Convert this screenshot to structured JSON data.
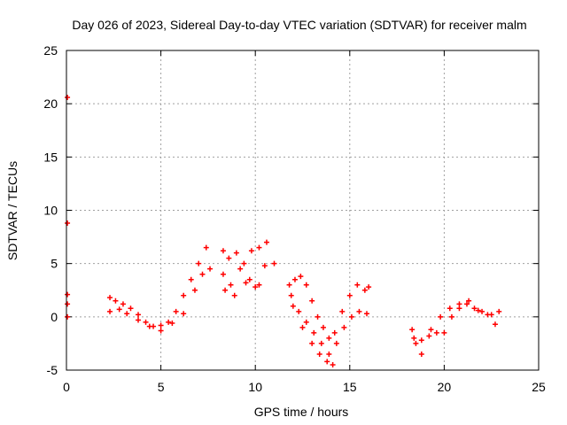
{
  "chart_data": {
    "type": "scatter",
    "title": "Day 026 of 2023, Sidereal Day-to-day VTEC variation (SDTVAR) for receiver malm",
    "xlabel": "GPS time / hours",
    "ylabel": "SDTVAR / TECUs",
    "xlim": [
      0,
      25
    ],
    "ylim": [
      -5,
      25
    ],
    "xticks": [
      0,
      5,
      10,
      15,
      20,
      25
    ],
    "yticks": [
      -5,
      0,
      5,
      10,
      15,
      20,
      25
    ],
    "grid": true,
    "marker": "plus",
    "color": "#ff0000",
    "series": [
      {
        "name": "SDTVAR",
        "x": [
          0.05,
          0.05,
          0.05,
          0.05,
          0.05,
          2.3,
          2.6,
          3.0,
          3.4,
          3.8,
          4.2,
          4.6,
          5.0,
          5.4,
          5.8,
          6.2,
          6.6,
          7.0,
          7.4,
          2.3,
          2.8,
          3.2,
          3.8,
          4.4,
          5.0,
          5.6,
          6.2,
          6.8,
          7.2,
          7.6,
          8.3,
          8.6,
          9.0,
          9.4,
          9.8,
          10.2,
          10.6,
          11.0,
          8.3,
          8.7,
          9.2,
          9.7,
          10.2,
          10.5,
          8.4,
          8.9,
          9.5,
          10.0,
          11.8,
          12.1,
          12.4,
          12.7,
          13.0,
          13.3,
          13.6,
          13.9,
          14.2,
          14.6,
          15.0,
          15.4,
          15.8,
          16.0,
          11.9,
          12.3,
          12.7,
          13.1,
          13.5,
          13.9,
          14.3,
          14.7,
          15.1,
          15.5,
          15.9,
          12.0,
          12.5,
          13.0,
          13.4,
          13.8,
          14.1,
          18.3,
          18.5,
          18.8,
          19.2,
          19.6,
          20.0,
          20.4,
          20.8,
          21.2,
          21.6,
          22.0,
          22.5,
          22.9,
          18.4,
          18.8,
          19.3,
          19.8,
          20.3,
          20.8,
          21.3,
          21.8,
          22.3,
          22.7
        ],
        "y": [
          20.6,
          8.8,
          2.1,
          1.2,
          0.0,
          1.8,
          1.5,
          1.2,
          0.8,
          0.2,
          -0.5,
          -0.9,
          -0.8,
          -0.5,
          0.5,
          2.0,
          3.5,
          5.0,
          6.5,
          0.5,
          0.7,
          0.3,
          -0.3,
          -0.9,
          -1.3,
          -0.6,
          0.3,
          2.5,
          4.0,
          4.5,
          6.2,
          5.5,
          6.0,
          5.0,
          6.2,
          6.5,
          7.0,
          5.0,
          4.0,
          3.0,
          4.5,
          3.5,
          3.0,
          4.8,
          2.5,
          2.0,
          3.2,
          2.8,
          3.0,
          3.5,
          3.8,
          3.0,
          1.5,
          0.0,
          -1.0,
          -2.0,
          -1.5,
          0.5,
          2.0,
          3.0,
          2.5,
          2.8,
          2.0,
          0.5,
          -0.5,
          -1.5,
          -2.5,
          -3.5,
          -2.5,
          -1.0,
          0.0,
          0.5,
          0.3,
          1.0,
          -1.0,
          -2.5,
          -3.5,
          -4.2,
          -4.5,
          -1.2,
          -2.5,
          -3.5,
          -1.8,
          -1.5,
          -1.5,
          0.0,
          0.8,
          1.2,
          0.8,
          0.5,
          0.2,
          0.5,
          -2.0,
          -2.2,
          -1.2,
          0.0,
          0.8,
          1.2,
          1.5,
          0.6,
          0.2,
          -0.7
        ]
      }
    ]
  }
}
